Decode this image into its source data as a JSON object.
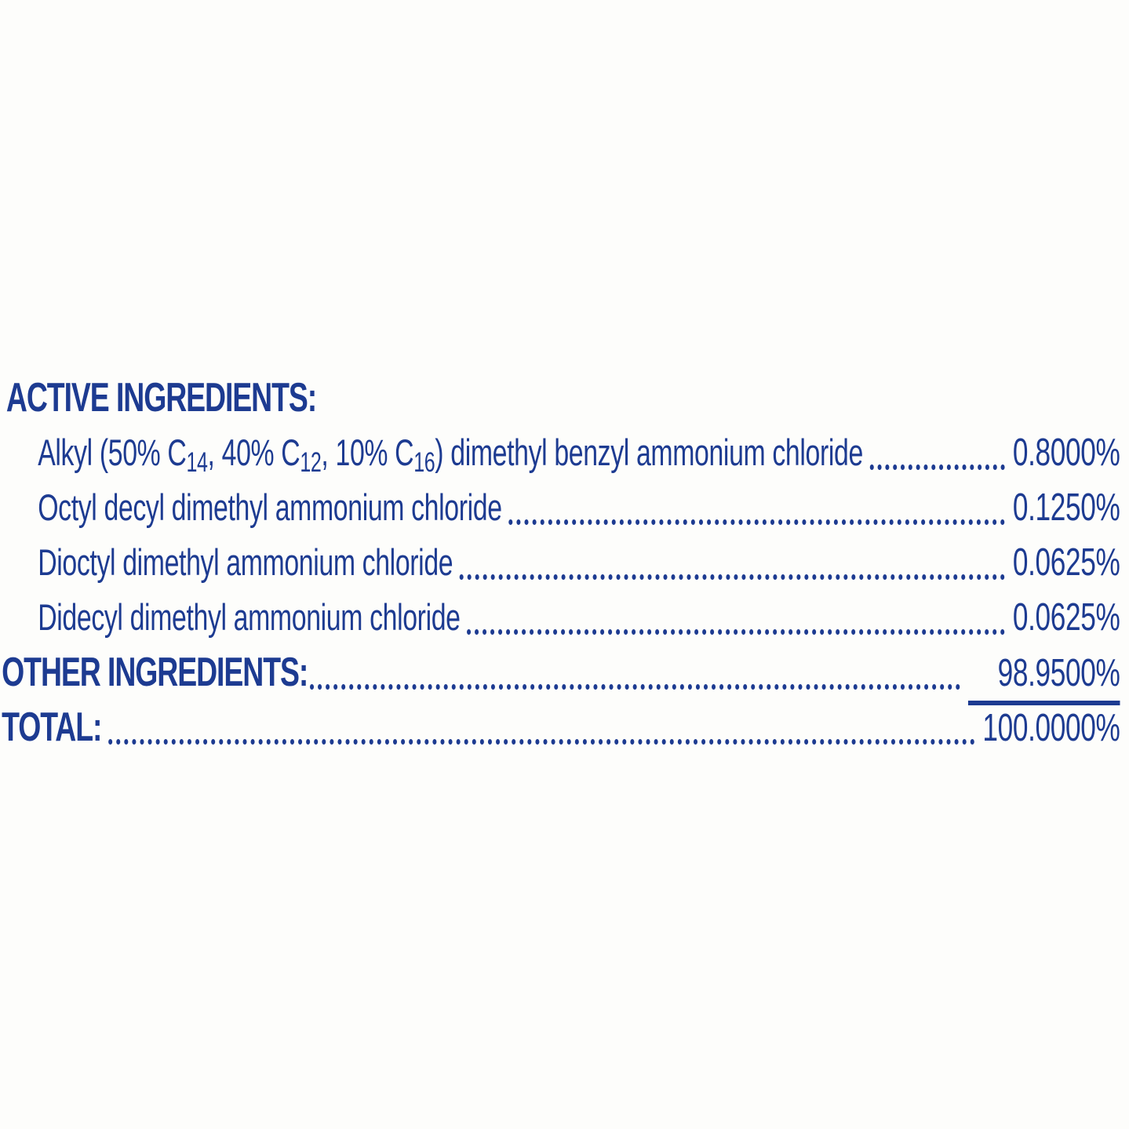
{
  "colors": {
    "text_blue": "#1d3b91",
    "background": "#fdfdfb"
  },
  "label": {
    "active_header": "ACTIVE INGREDIENTS:",
    "ingredients": [
      {
        "name_parts": [
          {
            "text": "Alkyl (50% C"
          },
          {
            "sub": "14"
          },
          {
            "text": ", 40% C"
          },
          {
            "sub": "12"
          },
          {
            "text": ", 10% C"
          },
          {
            "sub": "16"
          },
          {
            "text": ") dimethyl benzyl ammonium chloride"
          }
        ],
        "value": "0.8000%"
      },
      {
        "name_parts": [
          {
            "text": "Octyl decyl dimethyl ammonium chloride"
          }
        ],
        "value": "0.1250%"
      },
      {
        "name_parts": [
          {
            "text": "Dioctyl dimethyl ammonium chloride"
          }
        ],
        "value": "0.0625%"
      },
      {
        "name_parts": [
          {
            "text": "Didecyl dimethyl ammonium chloride"
          }
        ],
        "value": "0.0625%"
      }
    ],
    "other_ingredients": {
      "label": "OTHER INGREDIENTS:",
      "value": "98.9500%"
    },
    "total": {
      "label": "TOTAL:",
      "value": "100.0000%"
    }
  }
}
